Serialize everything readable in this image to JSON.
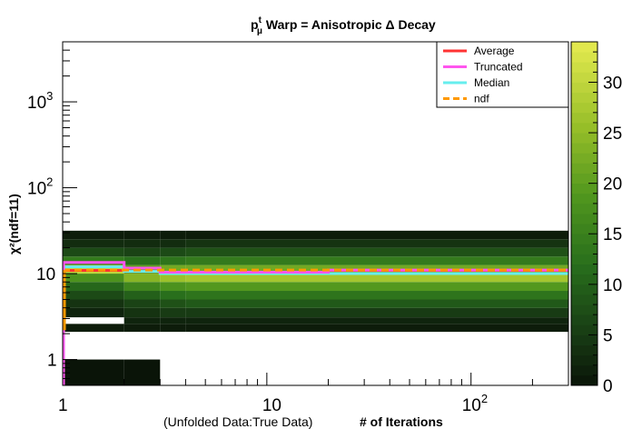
{
  "chart_data": {
    "type": "heatmap",
    "title": {
      "variable_main": "p",
      "variable_sup": "t",
      "variable_sub": "μ",
      "rest": " Warp = Anisotropic    Δ Decay"
    },
    "xlabel_prefix": "(Unfolded Data:True Data)",
    "xlabel": "# of Iterations",
    "ylabel": "χ²(ndf=11)",
    "x_scale": "log",
    "y_scale": "log",
    "xlim": [
      1,
      300
    ],
    "ylim": [
      0.5,
      5000
    ],
    "x_ticks": [
      {
        "value": 1,
        "label": "1"
      },
      {
        "value": 10,
        "label": "10"
      },
      {
        "value": 100,
        "label": "10",
        "sup": "2"
      }
    ],
    "y_ticks": [
      {
        "value": 1,
        "label": "1"
      },
      {
        "value": 10,
        "label": "10"
      },
      {
        "value": 100,
        "label": "10",
        "sup": "2"
      },
      {
        "value": 1000,
        "label": "10",
        "sup": "3"
      }
    ],
    "z_range": [
      0,
      34
    ],
    "z_ticks": [
      0,
      5,
      10,
      15,
      20,
      25,
      30
    ],
    "legend_position": "top-right",
    "legend": [
      {
        "label": "Average",
        "color": "#ff3333"
      },
      {
        "label": "Truncated",
        "color": "#ff55ee"
      },
      {
        "label": "Median",
        "color": "#66eeee"
      },
      {
        "label": "ndf",
        "color": "#ff9900",
        "dashed": true
      }
    ],
    "lines": {
      "average": [
        {
          "x": 1,
          "y": 10.9
        },
        {
          "x": 2,
          "y": 10.6
        },
        {
          "x": 3,
          "y": 10.1
        },
        {
          "x": 20,
          "y": 10.9
        },
        {
          "x": 300,
          "y": 10.9
        }
      ],
      "truncated": [
        {
          "x": 1,
          "y": 13.5
        },
        {
          "x": 2,
          "y": 11.6
        },
        {
          "x": 3,
          "y": 10.4
        },
        {
          "x": 20,
          "y": 11.0
        },
        {
          "x": 300,
          "y": 11.0
        }
      ],
      "median": [
        {
          "x": 1,
          "y": 12.0
        },
        {
          "x": 2,
          "y": 10.6
        },
        {
          "x": 3,
          "y": 10.0
        },
        {
          "x": 300,
          "y": 10.0
        }
      ],
      "ndf": [
        {
          "x": 1,
          "y": 11
        },
        {
          "x": 300,
          "y": 11
        }
      ]
    },
    "columns": [
      {
        "x0": 1,
        "x1": 2,
        "cells": [
          {
            "y0": 0.5,
            "y1": 1.0,
            "z": 0
          },
          {
            "y0": 2.1,
            "y1": 2.6,
            "z": 1
          },
          {
            "y0": 3.1,
            "y1": 4.0,
            "z": 2
          },
          {
            "y0": 4.0,
            "y1": 5.0,
            "z": 4
          },
          {
            "y0": 5.0,
            "y1": 6.3,
            "z": 7
          },
          {
            "y0": 6.3,
            "y1": 8.0,
            "z": 11
          },
          {
            "y0": 8.0,
            "y1": 10.0,
            "z": 18
          },
          {
            "y0": 10.0,
            "y1": 12.6,
            "z": 30
          },
          {
            "y0": 12.6,
            "y1": 15.8,
            "z": 14
          },
          {
            "y0": 15.8,
            "y1": 20.0,
            "z": 7
          },
          {
            "y0": 20.0,
            "y1": 25.1,
            "z": 3
          },
          {
            "y0": 25.1,
            "y1": 31.6,
            "z": 1
          }
        ]
      },
      {
        "x0": 2,
        "x1": 3,
        "cells": [
          {
            "y0": 0.5,
            "y1": 1.0,
            "z": 0
          },
          {
            "y0": 2.1,
            "y1": 2.6,
            "z": 1
          },
          {
            "y0": 2.6,
            "y1": 3.1,
            "z": 2
          },
          {
            "y0": 3.1,
            "y1": 4.0,
            "z": 4
          },
          {
            "y0": 4.0,
            "y1": 5.0,
            "z": 6
          },
          {
            "y0": 5.0,
            "y1": 6.3,
            "z": 10
          },
          {
            "y0": 6.3,
            "y1": 8.0,
            "z": 16
          },
          {
            "y0": 8.0,
            "y1": 10.0,
            "z": 24
          },
          {
            "y0": 10.0,
            "y1": 12.6,
            "z": 20
          },
          {
            "y0": 12.6,
            "y1": 15.8,
            "z": 12
          },
          {
            "y0": 15.8,
            "y1": 20.0,
            "z": 6
          },
          {
            "y0": 20.0,
            "y1": 25.1,
            "z": 3
          },
          {
            "y0": 25.1,
            "y1": 31.6,
            "z": 1
          }
        ]
      },
      {
        "x0": 3,
        "x1": 4,
        "cells": [
          {
            "y0": 2.1,
            "y1": 2.6,
            "z": 1
          },
          {
            "y0": 2.6,
            "y1": 3.1,
            "z": 2
          },
          {
            "y0": 3.1,
            "y1": 4.0,
            "z": 5
          },
          {
            "y0": 4.0,
            "y1": 5.0,
            "z": 8
          },
          {
            "y0": 5.0,
            "y1": 6.3,
            "z": 12
          },
          {
            "y0": 6.3,
            "y1": 8.0,
            "z": 18
          },
          {
            "y0": 8.0,
            "y1": 10.0,
            "z": 26
          },
          {
            "y0": 10.0,
            "y1": 12.6,
            "z": 22
          },
          {
            "y0": 12.6,
            "y1": 15.8,
            "z": 13
          },
          {
            "y0": 15.8,
            "y1": 20.0,
            "z": 7
          },
          {
            "y0": 20.0,
            "y1": 25.1,
            "z": 3
          },
          {
            "y0": 25.1,
            "y1": 31.6,
            "z": 1
          }
        ]
      },
      {
        "x0": 4,
        "x1": 300,
        "cells": [
          {
            "y0": 2.1,
            "y1": 2.6,
            "z": 1
          },
          {
            "y0": 2.6,
            "y1": 3.1,
            "z": 2
          },
          {
            "y0": 3.1,
            "y1": 4.0,
            "z": 5
          },
          {
            "y0": 4.0,
            "y1": 5.0,
            "z": 9
          },
          {
            "y0": 5.0,
            "y1": 6.3,
            "z": 13
          },
          {
            "y0": 6.3,
            "y1": 8.0,
            "z": 19
          },
          {
            "y0": 8.0,
            "y1": 10.0,
            "z": 27
          },
          {
            "y0": 10.0,
            "y1": 12.6,
            "z": 22
          },
          {
            "y0": 12.6,
            "y1": 15.8,
            "z": 14
          },
          {
            "y0": 15.8,
            "y1": 20.0,
            "z": 8
          },
          {
            "y0": 20.0,
            "y1": 25.1,
            "z": 4
          },
          {
            "y0": 25.1,
            "y1": 31.6,
            "z": 1
          }
        ]
      }
    ]
  }
}
